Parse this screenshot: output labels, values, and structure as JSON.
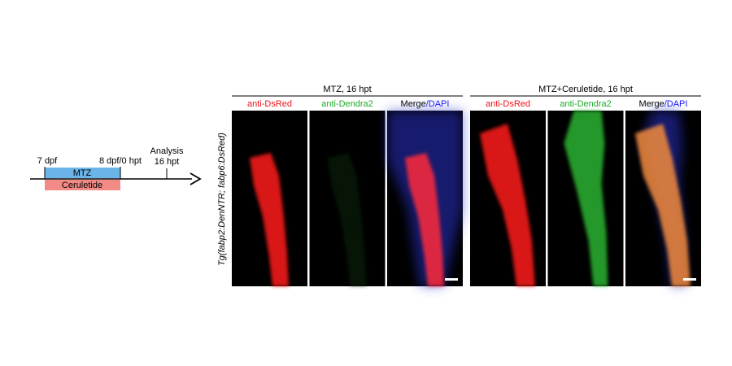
{
  "timeline": {
    "start": "7 dpf",
    "treatment_end": "8 dpf/0 hpt",
    "analysis": [
      "Analysis",
      "16 hpt"
    ],
    "bars": {
      "mtz": "MTZ",
      "ceruletide": "Ceruletide"
    }
  },
  "side_label": "Tg(fabp2:DenNTR; fabp6:DsRed)",
  "groups": [
    {
      "title": "MTZ, 16 hpt",
      "columns": [
        "anti-DsRed",
        "anti-Dendra2",
        [
          "Merge",
          "/DAPI"
        ]
      ]
    },
    {
      "title": "MTZ+Ceruletide, 16 hpt",
      "columns": [
        "anti-DsRed",
        "anti-Dendra2",
        [
          "Merge",
          "/DAPI"
        ]
      ]
    }
  ]
}
